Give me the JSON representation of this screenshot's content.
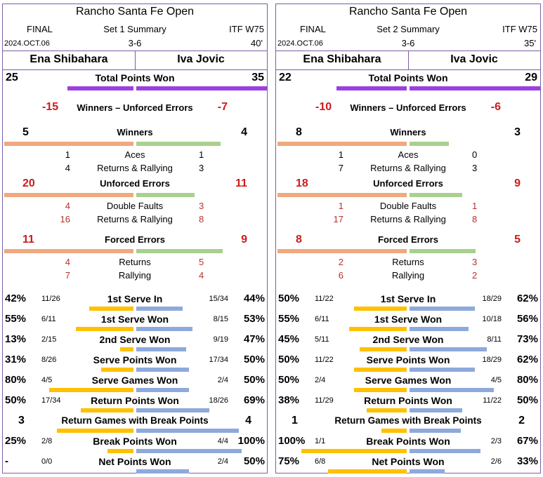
{
  "panels": [
    {
      "title": "Rancho Santa Fe Open",
      "status": "FINAL",
      "summary": "Set 1 Summary",
      "event": "ITF W75",
      "date": "2024.OCT.06",
      "score": "3-6",
      "duration": "40'",
      "player1": "Ena Shibahara",
      "player2": "Iva Jovic",
      "total_points": {
        "label": "Total Points Won",
        "p1": "25",
        "p2": "35",
        "p1_num": 25,
        "p2_num": 35
      },
      "wue": {
        "label": "Winners – Unforced Errors",
        "p1": "-15",
        "p2": "-7"
      },
      "winners": {
        "label": "Winners",
        "p1": "5",
        "p2": "4",
        "p1_num": 5,
        "p2_num": 4,
        "rows": [
          {
            "label": "Aces",
            "p1": "1",
            "p2": "1"
          },
          {
            "label": "Returns & Rallying",
            "p1": "4",
            "p2": "3"
          }
        ]
      },
      "unforced": {
        "label": "Unforced Errors",
        "p1": "20",
        "p2": "11",
        "p1_num": 20,
        "p2_num": 11,
        "rows": [
          {
            "label": "Double Faults",
            "p1": "4",
            "p2": "3"
          },
          {
            "label": "Returns & Rallying",
            "p1": "16",
            "p2": "8"
          }
        ]
      },
      "forced": {
        "label": "Forced Errors",
        "p1": "11",
        "p2": "9",
        "p1_num": 11,
        "p2_num": 9,
        "rows": [
          {
            "label": "Returns",
            "p1": "4",
            "p2": "5"
          },
          {
            "label": "Rallying",
            "p1": "7",
            "p2": "4"
          }
        ]
      },
      "stats": [
        {
          "label": "1st Serve In",
          "p1_pct": "42%",
          "p1_frac": "11/26",
          "p2_frac": "15/34",
          "p2_pct": "44%",
          "p1_val": 0.42,
          "p2_val": 0.44
        },
        {
          "label": "1st Serve Won",
          "p1_pct": "55%",
          "p1_frac": "6/11",
          "p2_frac": "8/15",
          "p2_pct": "53%",
          "p1_val": 0.55,
          "p2_val": 0.53
        },
        {
          "label": "2nd Serve Won",
          "p1_pct": "13%",
          "p1_frac": "2/15",
          "p2_frac": "9/19",
          "p2_pct": "47%",
          "p1_val": 0.13,
          "p2_val": 0.47
        },
        {
          "label": "Serve Points Won",
          "p1_pct": "31%",
          "p1_frac": "8/26",
          "p2_frac": "17/34",
          "p2_pct": "50%",
          "p1_val": 0.31,
          "p2_val": 0.5
        },
        {
          "label": "Serve Games Won",
          "p1_pct": "80%",
          "p1_frac": "4/5",
          "p2_frac": "2/4",
          "p2_pct": "50%",
          "p1_val": 0.8,
          "p2_val": 0.5
        },
        {
          "label": "Return Points Won",
          "p1_pct": "50%",
          "p1_frac": "17/34",
          "p2_frac": "18/26",
          "p2_pct": "69%",
          "p1_val": 0.5,
          "p2_val": 0.69
        }
      ],
      "rgbp": {
        "label": "Return Games with Break Points",
        "p1": "3",
        "p2": "4",
        "p1_val": 0.6,
        "p2_val": 0.8
      },
      "bp": {
        "label": "Break Points Won",
        "p1_pct": "25%",
        "p1_frac": "2/8",
        "p2_frac": "4/4",
        "p2_pct": "100%",
        "p1_val": 0.25,
        "p2_val": 1.0
      },
      "net": {
        "label": "Net Points Won",
        "p1_pct": "-",
        "p1_frac": "0/0",
        "p2_frac": "2/4",
        "p2_pct": "50%",
        "p1_val": 0,
        "p2_val": 0.5
      }
    },
    {
      "title": "Rancho Santa Fe Open",
      "status": "FINAL",
      "summary": "Set 2 Summary",
      "event": "ITF W75",
      "date": "2024.OCT.06",
      "score": "3-6",
      "duration": "35'",
      "player1": "Ena Shibahara",
      "player2": "Iva Jovic",
      "total_points": {
        "label": "Total Points Won",
        "p1": "22",
        "p2": "29",
        "p1_num": 22,
        "p2_num": 29
      },
      "wue": {
        "label": "Winners – Unforced Errors",
        "p1": "-10",
        "p2": "-6"
      },
      "winners": {
        "label": "Winners",
        "p1": "8",
        "p2": "3",
        "p1_num": 8,
        "p2_num": 3,
        "rows": [
          {
            "label": "Aces",
            "p1": "1",
            "p2": "0"
          },
          {
            "label": "Returns & Rallying",
            "p1": "7",
            "p2": "3"
          }
        ]
      },
      "unforced": {
        "label": "Unforced Errors",
        "p1": "18",
        "p2": "9",
        "p1_num": 18,
        "p2_num": 9,
        "rows": [
          {
            "label": "Double Faults",
            "p1": "1",
            "p2": "1"
          },
          {
            "label": "Returns & Rallying",
            "p1": "17",
            "p2": "8"
          }
        ]
      },
      "forced": {
        "label": "Forced Errors",
        "p1": "8",
        "p2": "5",
        "p1_num": 8,
        "p2_num": 5,
        "rows": [
          {
            "label": "Returns",
            "p1": "2",
            "p2": "3"
          },
          {
            "label": "Rallying",
            "p1": "6",
            "p2": "2"
          }
        ]
      },
      "stats": [
        {
          "label": "1st Serve In",
          "p1_pct": "50%",
          "p1_frac": "11/22",
          "p2_frac": "18/29",
          "p2_pct": "62%",
          "p1_val": 0.5,
          "p2_val": 0.62
        },
        {
          "label": "1st Serve Won",
          "p1_pct": "55%",
          "p1_frac": "6/11",
          "p2_frac": "10/18",
          "p2_pct": "56%",
          "p1_val": 0.55,
          "p2_val": 0.56
        },
        {
          "label": "2nd Serve Won",
          "p1_pct": "45%",
          "p1_frac": "5/11",
          "p2_frac": "8/11",
          "p2_pct": "73%",
          "p1_val": 0.45,
          "p2_val": 0.73
        },
        {
          "label": "Serve Points Won",
          "p1_pct": "50%",
          "p1_frac": "11/22",
          "p2_frac": "18/29",
          "p2_pct": "62%",
          "p1_val": 0.5,
          "p2_val": 0.62
        },
        {
          "label": "Serve Games Won",
          "p1_pct": "50%",
          "p1_frac": "2/4",
          "p2_frac": "4/5",
          "p2_pct": "80%",
          "p1_val": 0.5,
          "p2_val": 0.8
        },
        {
          "label": "Return Points Won",
          "p1_pct": "38%",
          "p1_frac": "11/29",
          "p2_frac": "11/22",
          "p2_pct": "50%",
          "p1_val": 0.38,
          "p2_val": 0.5
        }
      ],
      "rgbp": {
        "label": "Return Games with Break Points",
        "p1": "1",
        "p2": "2",
        "p1_val": 0.2,
        "p2_val": 0.4
      },
      "bp": {
        "label": "Break Points Won",
        "p1_pct": "100%",
        "p1_frac": "1/1",
        "p2_frac": "2/3",
        "p2_pct": "67%",
        "p1_val": 1.0,
        "p2_val": 0.67
      },
      "net": {
        "label": "Net Points Won",
        "p1_pct": "75%",
        "p1_frac": "6/8",
        "p2_frac": "2/6",
        "p2_pct": "33%",
        "p1_val": 0.75,
        "p2_val": 0.33
      }
    }
  ],
  "colors": {
    "border": "#7b5ea7",
    "total_bar": "#9b40e0",
    "p1_bar": "#f0a87e",
    "p2_bar": "#a9d08e",
    "stat_p1_bar": "#ffc000",
    "stat_p2_bar": "#8ea9db",
    "red_text": "#cc1b1b"
  }
}
